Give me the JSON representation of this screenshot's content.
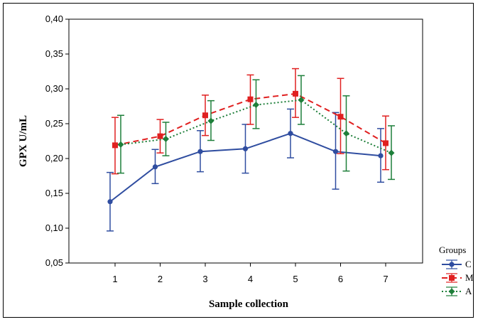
{
  "chart_data": {
    "type": "line",
    "title": "",
    "xlabel": "Sample collection",
    "ylabel": "GPX U/mL",
    "categories": [
      "1",
      "2",
      "3",
      "4",
      "5",
      "6",
      "7"
    ],
    "y_ticks": [
      "0,05",
      "0,10",
      "0,15",
      "0,20",
      "0,25",
      "0,30",
      "0,35",
      "0,40"
    ],
    "ylim": [
      0.05,
      0.4
    ],
    "grid": false,
    "legend_title": "Groups",
    "legend_position": "bottom-right",
    "series": [
      {
        "name": "C",
        "color": "#2f4da0",
        "line_style": "solid",
        "marker": "circle",
        "values": [
          0.138,
          0.188,
          0.21,
          0.214,
          0.236,
          0.21,
          0.204
        ],
        "err_low": [
          0.096,
          0.164,
          0.181,
          0.179,
          0.201,
          0.156,
          0.166
        ],
        "err_high": [
          0.18,
          0.213,
          0.24,
          0.249,
          0.271,
          0.266,
          0.243
        ]
      },
      {
        "name": "M",
        "color": "#e02020",
        "line_style": "dashed",
        "marker": "square",
        "values": [
          0.219,
          0.232,
          0.262,
          0.285,
          0.293,
          0.26,
          0.222
        ],
        "err_low": [
          0.178,
          0.208,
          0.233,
          0.249,
          0.259,
          0.207,
          0.184
        ],
        "err_high": [
          0.259,
          0.256,
          0.291,
          0.32,
          0.329,
          0.315,
          0.261
        ]
      },
      {
        "name": "A",
        "color": "#1e7f3a",
        "line_style": "dotted",
        "marker": "diamond",
        "values": [
          0.22,
          0.228,
          0.254,
          0.277,
          0.284,
          0.236,
          0.208
        ],
        "err_low": [
          0.179,
          0.204,
          0.226,
          0.243,
          0.249,
          0.182,
          0.17
        ],
        "err_high": [
          0.262,
          0.252,
          0.283,
          0.313,
          0.319,
          0.29,
          0.247
        ]
      }
    ]
  }
}
